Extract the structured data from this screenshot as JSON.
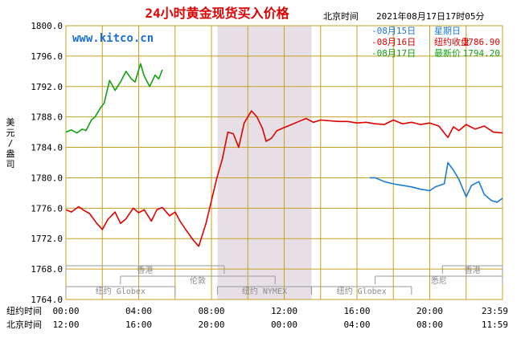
{
  "header": {
    "title": "24小时黄金现货买入价格",
    "timezone_label": "北京时间",
    "datetime": "2021年08月17日17时05分",
    "watermark": "www.kitco.cn"
  },
  "legend": [
    {
      "date": "08月15日",
      "label": "星期日",
      "value": "",
      "color": "#1a7ad9"
    },
    {
      "date": "08月16日",
      "label": "纽约收盘",
      "value": "1786.90",
      "color": "#e00000"
    },
    {
      "date": "08月17日",
      "label": "最新价",
      "value": "1794.20",
      "color": "#12a012"
    }
  ],
  "y_axis": {
    "label": "美元/盎司",
    "ticks": [
      "1800.0",
      "1796.0",
      "1792.0",
      "1788.0",
      "1784.0",
      "1780.0",
      "1776.0",
      "1772.0",
      "1768.0",
      "1764.0"
    ]
  },
  "x_axis": {
    "row_label_ny": "纽约时间",
    "row_label_bj": "北京时间",
    "ny_ticks": [
      "00:00",
      "04:00",
      "08:00",
      "12:00",
      "16:00",
      "20:00",
      "23:59"
    ],
    "bj_ticks": [
      "12:00",
      "16:00",
      "20:00",
      "00:00",
      "04:00",
      "08:00",
      "11:59"
    ]
  },
  "markets": [
    {
      "name": "香港",
      "row": 0,
      "start": 0,
      "end": 8.7
    },
    {
      "name": "香港",
      "row": 0,
      "start": 20.7,
      "end": 24
    },
    {
      "name": "伦敦",
      "row": 1,
      "start": 3.0,
      "end": 11.5
    },
    {
      "name": "悉尼",
      "row": 1,
      "start": 17.0,
      "end": 24
    },
    {
      "name": "纽约 Globex",
      "row": 2,
      "start": 0,
      "end": 6.0
    },
    {
      "name": "纽约 NYMEX",
      "row": 2,
      "start": 8.33,
      "end": 13.5
    },
    {
      "name": "纽约 Globex",
      "row": 2,
      "start": 13.5,
      "end": 19.0
    }
  ],
  "nymex_session": {
    "start": 8.33,
    "end": 13.5
  },
  "colors": {
    "grid": "#c8a020",
    "shade": "#e6e0e6",
    "title": "#e00000",
    "watermark": "#1a6fd0"
  },
  "chart_data": {
    "type": "line",
    "title": "24小时黄金现货买入价格",
    "xlabel": "纽约时间",
    "ylabel": "美元/盎司",
    "ylim": [
      1764,
      1800
    ],
    "xlim": [
      0,
      24
    ],
    "series": [
      {
        "name": "08月15日 星期日",
        "color": "#1a7ad9",
        "x": [
          16.7,
          17.0,
          17.5,
          18.0,
          18.5,
          19.0,
          19.5,
          20.0,
          20.3,
          20.8,
          21.0,
          21.3,
          21.6,
          22.0,
          22.3,
          22.7,
          23.0,
          23.4,
          23.7,
          24.0
        ],
        "y": [
          1780.0,
          1780.0,
          1779.5,
          1779.2,
          1779.0,
          1778.8,
          1778.5,
          1778.3,
          1778.8,
          1779.2,
          1782.0,
          1781.0,
          1779.8,
          1777.5,
          1779.0,
          1779.5,
          1777.8,
          1777.0,
          1776.8,
          1777.3
        ]
      },
      {
        "name": "08月16日 纽约收盘",
        "color": "#e00000",
        "x": [
          0.0,
          0.3,
          0.7,
          1.0,
          1.3,
          1.7,
          2.0,
          2.3,
          2.7,
          3.0,
          3.3,
          3.7,
          4.0,
          4.3,
          4.7,
          5.0,
          5.3,
          5.7,
          6.0,
          6.3,
          6.7,
          7.0,
          7.3,
          7.7,
          8.0,
          8.3,
          8.6,
          8.9,
          9.2,
          9.5,
          9.8,
          10.2,
          10.5,
          10.8,
          11.0,
          11.3,
          11.6,
          12.0,
          12.4,
          12.8,
          13.2,
          13.6,
          14.0,
          14.5,
          15.0,
          15.5,
          16.0,
          16.5,
          17.0,
          17.5,
          18.0,
          18.5,
          19.0,
          19.5,
          20.0,
          20.5,
          21.0,
          21.3,
          21.6,
          22.0,
          22.5,
          23.0,
          23.5,
          24.0
        ],
        "y": [
          1775.8,
          1775.5,
          1776.2,
          1775.7,
          1775.3,
          1774.0,
          1773.2,
          1774.5,
          1775.5,
          1774.0,
          1774.6,
          1776.0,
          1775.4,
          1775.8,
          1774.3,
          1775.8,
          1776.1,
          1775.0,
          1775.5,
          1774.2,
          1772.8,
          1771.8,
          1771.0,
          1774.0,
          1777.0,
          1780.0,
          1782.5,
          1786.0,
          1785.8,
          1784.0,
          1787.2,
          1788.8,
          1788.0,
          1786.5,
          1784.8,
          1785.2,
          1786.2,
          1786.6,
          1787.0,
          1787.4,
          1787.8,
          1787.3,
          1787.6,
          1787.5,
          1787.4,
          1787.4,
          1787.2,
          1787.3,
          1787.1,
          1787.0,
          1787.6,
          1787.1,
          1787.3,
          1787.0,
          1787.2,
          1786.8,
          1785.3,
          1786.7,
          1786.2,
          1787.0,
          1786.4,
          1786.8,
          1786.0,
          1785.9
        ]
      },
      {
        "name": "08月17日 最新价",
        "color": "#12a012",
        "x": [
          0.0,
          0.3,
          0.6,
          0.9,
          1.1,
          1.4,
          1.6,
          1.9,
          2.1,
          2.4,
          2.7,
          3.0,
          3.3,
          3.6,
          3.8,
          4.1,
          4.3,
          4.6,
          4.9,
          5.1,
          5.3
        ],
        "y": [
          1786.0,
          1786.3,
          1785.9,
          1786.4,
          1786.2,
          1787.6,
          1788.0,
          1789.2,
          1789.8,
          1792.8,
          1791.5,
          1792.6,
          1794.0,
          1793.0,
          1792.6,
          1795.0,
          1793.4,
          1792.0,
          1793.5,
          1793.0,
          1794.2
        ]
      }
    ]
  }
}
